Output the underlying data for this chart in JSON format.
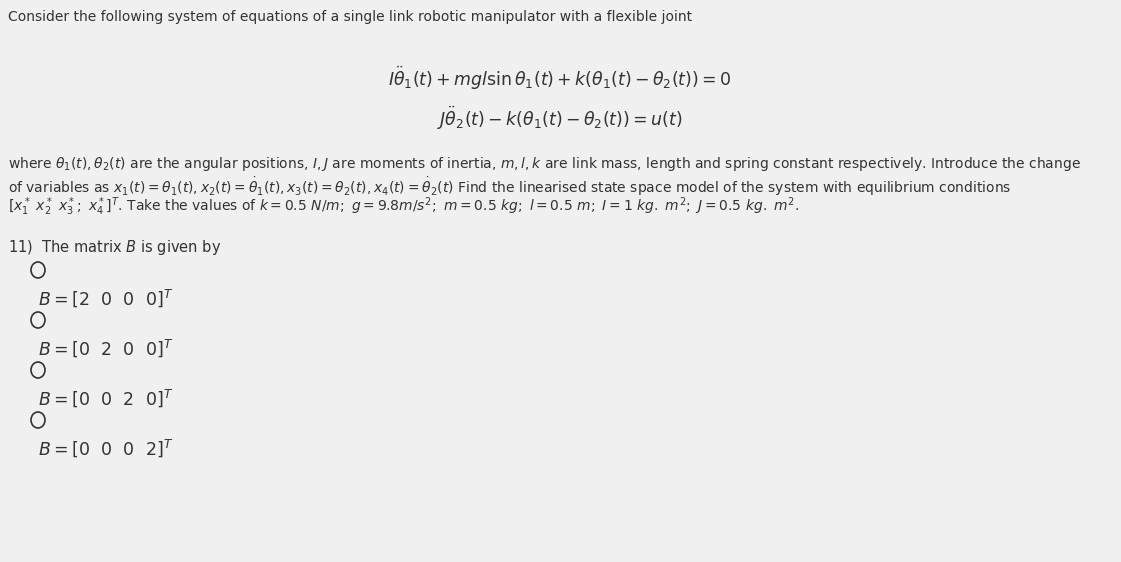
{
  "bg_color": "#f0f0f0",
  "title_text": "Consider the following system of equations of a single link robotic manipulator with a flexible joint",
  "eq1": "$I\\ddot{\\theta}_1(t) + mgl\\sin\\theta_1(t) + k(\\theta_1(t) - \\theta_2(t)) = 0$",
  "eq2": "$J\\ddot{\\theta}_2(t) - k(\\theta_1(t) - \\theta_2(t)) = u(t)$",
  "body_line1": "where $\\theta_1(t), \\theta_2(t)$ are the angular positions, $I, J$ are moments of inertia, $m, l, k$ are link mass, length and spring constant respectively. Introduce the change",
  "body_line2": "of variables as $x_1(t) = \\theta_1(t), x_2(t) = \\dot{\\theta}_1(t), x_3(t) = \\theta_2(t), x_4(t) = \\dot{\\theta}_2(t)$ Find the linearised state space model of the system with equilibrium conditions",
  "body_line3": "$[x_1^*\\ x_2^*\\ x_3^*;\\ x_4^*]^T$. Take the values of $k = 0.5\\ N/m;\\ g = 9.8m/s^2;\\ m = 0.5\\ kg;\\ l = 0.5\\ m;\\ I = 1\\ kg.\\ m^2;\\ J = 0.5\\ kg.\\ m^2$.",
  "question": "11)  The matrix $B$ is given by",
  "options": [
    "$B = [2\\ \\ 0\\ \\ 0\\ \\ 0]^T$",
    "$B = [0\\ \\ 2\\ \\ 0\\ \\ 0]^T$",
    "$B = [0\\ \\ 0\\ \\ 2\\ \\ 0]^T$",
    "$B = [0\\ \\ 0\\ \\ 0\\ \\ 2]^T$"
  ],
  "title_fontsize": 10.0,
  "eq_fontsize": 12.5,
  "body_fontsize": 10.0,
  "option_fontsize": 12.5,
  "question_fontsize": 10.5,
  "text_color": "#333333"
}
